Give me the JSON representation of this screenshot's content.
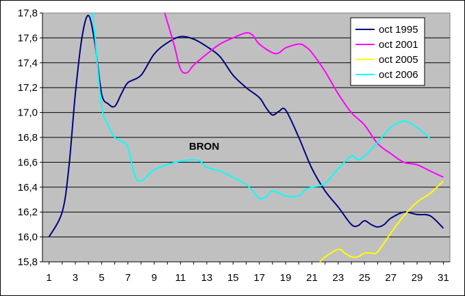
{
  "chart_data": {
    "type": "line",
    "title": "",
    "xlabel": "",
    "ylabel": "",
    "annotation": "BRON",
    "xlim": [
      0.5,
      31.5
    ],
    "ylim": [
      15.8,
      17.8
    ],
    "x_ticks": [
      "1",
      "3",
      "5",
      "7",
      "9",
      "11",
      "13",
      "15",
      "17",
      "19",
      "21",
      "23",
      "25",
      "27",
      "29",
      "31"
    ],
    "y_ticks": [
      "15,8",
      "16,0",
      "16,2",
      "16,4",
      "16,6",
      "16,8",
      "17,0",
      "17,2",
      "17,4",
      "17,6",
      "17,8"
    ],
    "grid": "horizontal",
    "legend_position": "top-right",
    "plot_background": "#c0c0c0",
    "series": [
      {
        "name": "oct 1995",
        "color": "#000080",
        "points": [
          [
            1,
            16.0
          ],
          [
            2,
            16.2
          ],
          [
            2.5,
            16.55
          ],
          [
            3,
            17.15
          ],
          [
            3.5,
            17.6
          ],
          [
            4,
            17.78
          ],
          [
            4.5,
            17.55
          ],
          [
            5,
            17.15
          ],
          [
            5.5,
            17.07
          ],
          [
            6,
            17.05
          ],
          [
            6.5,
            17.15
          ],
          [
            7,
            17.24
          ],
          [
            8,
            17.3
          ],
          [
            9,
            17.47
          ],
          [
            10,
            17.56
          ],
          [
            11,
            17.61
          ],
          [
            12,
            17.59
          ],
          [
            13,
            17.53
          ],
          [
            14,
            17.45
          ],
          [
            15,
            17.3
          ],
          [
            16,
            17.2
          ],
          [
            17,
            17.12
          ],
          [
            17.5,
            17.04
          ],
          [
            18,
            16.98
          ],
          [
            18.5,
            17.01
          ],
          [
            19,
            17.02
          ],
          [
            20,
            16.8
          ],
          [
            21,
            16.55
          ],
          [
            22,
            16.37
          ],
          [
            23,
            16.24
          ],
          [
            24,
            16.1
          ],
          [
            24.5,
            16.09
          ],
          [
            25,
            16.13
          ],
          [
            25.5,
            16.1
          ],
          [
            26,
            16.08
          ],
          [
            26.5,
            16.1
          ],
          [
            27,
            16.15
          ],
          [
            28,
            16.2
          ],
          [
            29,
            16.18
          ],
          [
            30,
            16.17
          ],
          [
            31,
            16.07
          ]
        ]
      },
      {
        "name": "oct 2001",
        "color": "#ff00ff",
        "points": [
          [
            9.8,
            17.8
          ],
          [
            10.5,
            17.55
          ],
          [
            11,
            17.35
          ],
          [
            11.5,
            17.32
          ],
          [
            12,
            17.38
          ],
          [
            13,
            17.47
          ],
          [
            14,
            17.55
          ],
          [
            15,
            17.6
          ],
          [
            16,
            17.64
          ],
          [
            16.5,
            17.62
          ],
          [
            17,
            17.55
          ],
          [
            18,
            17.48
          ],
          [
            18.5,
            17.48
          ],
          [
            19,
            17.52
          ],
          [
            20,
            17.55
          ],
          [
            20.5,
            17.53
          ],
          [
            21,
            17.48
          ],
          [
            22,
            17.33
          ],
          [
            23,
            17.15
          ],
          [
            24,
            17.0
          ],
          [
            25,
            16.9
          ],
          [
            26,
            16.75
          ],
          [
            27,
            16.67
          ],
          [
            28,
            16.6
          ],
          [
            29,
            16.58
          ],
          [
            30,
            16.53
          ],
          [
            31,
            16.48
          ]
        ]
      },
      {
        "name": "oct 2005",
        "color": "#ffff00",
        "points": [
          [
            21.6,
            15.8
          ],
          [
            22,
            15.84
          ],
          [
            23,
            15.9
          ],
          [
            23.5,
            15.87
          ],
          [
            24,
            15.84
          ],
          [
            24.5,
            15.84
          ],
          [
            25,
            15.87
          ],
          [
            25.5,
            15.87
          ],
          [
            26,
            15.88
          ],
          [
            27,
            16.03
          ],
          [
            28,
            16.17
          ],
          [
            29,
            16.28
          ],
          [
            30,
            16.35
          ],
          [
            31,
            16.45
          ]
        ]
      },
      {
        "name": "oct 2006",
        "color": "#00ffff",
        "points": [
          [
            4.3,
            17.8
          ],
          [
            4.5,
            17.6
          ],
          [
            5,
            17.05
          ],
          [
            5.5,
            16.9
          ],
          [
            6,
            16.8
          ],
          [
            6.5,
            16.77
          ],
          [
            7,
            16.72
          ],
          [
            7.5,
            16.5
          ],
          [
            8,
            16.45
          ],
          [
            9,
            16.54
          ],
          [
            10,
            16.58
          ],
          [
            11,
            16.61
          ],
          [
            12,
            16.62
          ],
          [
            12.5,
            16.61
          ],
          [
            13,
            16.56
          ],
          [
            14,
            16.53
          ],
          [
            15,
            16.48
          ],
          [
            16,
            16.42
          ],
          [
            16.5,
            16.37
          ],
          [
            17,
            16.31
          ],
          [
            17.5,
            16.32
          ],
          [
            18,
            16.37
          ],
          [
            19,
            16.33
          ],
          [
            20,
            16.33
          ],
          [
            20.5,
            16.38
          ],
          [
            21,
            16.4
          ],
          [
            22,
            16.43
          ],
          [
            23,
            16.55
          ],
          [
            24,
            16.65
          ],
          [
            24.5,
            16.62
          ],
          [
            25,
            16.65
          ],
          [
            26,
            16.76
          ],
          [
            27,
            16.88
          ],
          [
            28,
            16.93
          ],
          [
            29,
            16.88
          ],
          [
            30,
            16.79
          ]
        ]
      }
    ]
  }
}
